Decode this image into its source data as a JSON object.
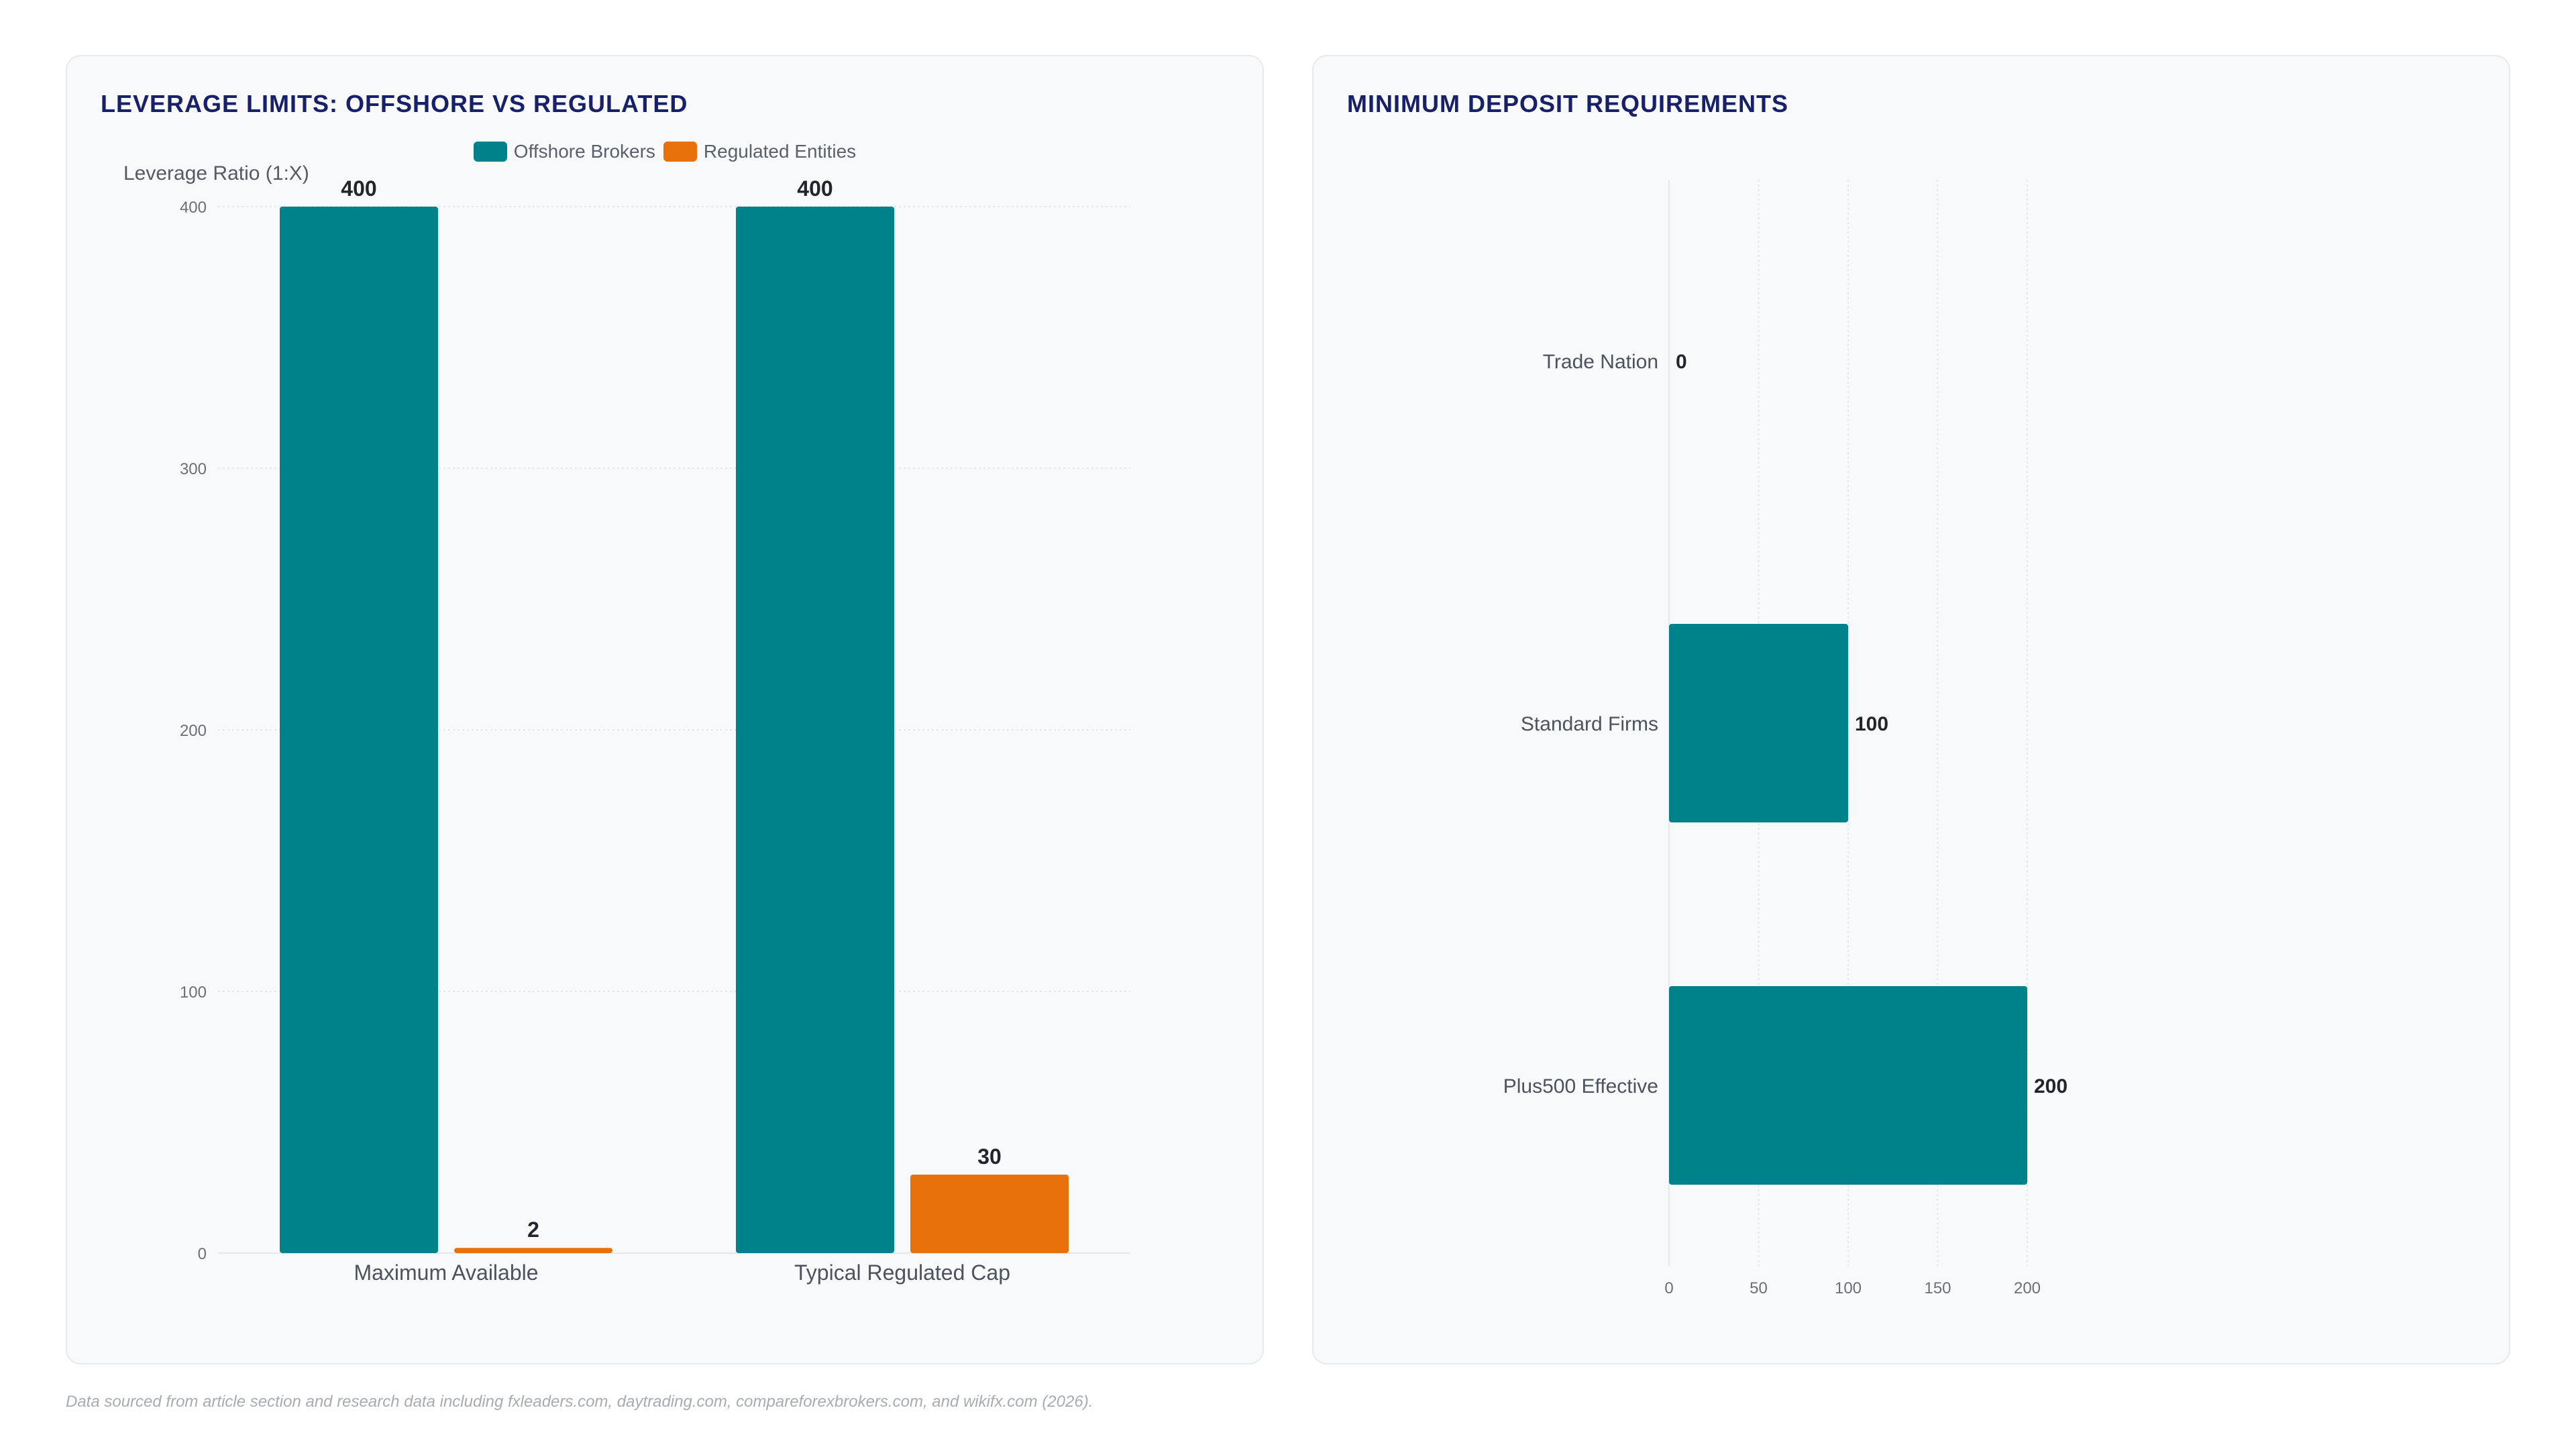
{
  "colors": {
    "offshore": "#00828a",
    "regulated": "#e8710b",
    "title": "#18206a",
    "grid": "#e4e7ec",
    "tick": "#6b6f78",
    "label": "#22252b"
  },
  "source_note": "Data sourced from article section and research data including fxleaders.com, daytrading.com, compareforexbrokers.com, and wikifx.com (2026).",
  "chart_data": [
    {
      "type": "bar",
      "title": "LEVERAGE LIMITS: OFFSHORE VS REGULATED",
      "ylabel": "Leverage Ratio (1:X)",
      "xlabel": "",
      "categories": [
        "Maximum Available",
        "Typical Regulated Cap"
      ],
      "series": [
        {
          "name": "Offshore Brokers",
          "values": [
            400,
            400
          ]
        },
        {
          "name": "Regulated Entities",
          "values": [
            2,
            30
          ]
        }
      ],
      "ylim": [
        0,
        400
      ],
      "yticks": [
        0,
        100,
        200,
        300,
        400
      ],
      "legend": "top-center",
      "grid": true
    },
    {
      "type": "bar",
      "orientation": "horizontal",
      "title": "MINIMUM DEPOSIT REQUIREMENTS",
      "xlabel": "",
      "ylabel": "",
      "categories": [
        "Trade Nation",
        "Standard Firms",
        "Plus500 Effective"
      ],
      "values": [
        0,
        100,
        200
      ],
      "xlim": [
        0,
        200
      ],
      "xticks": [
        0,
        50,
        100,
        150,
        200
      ],
      "grid": true
    }
  ]
}
